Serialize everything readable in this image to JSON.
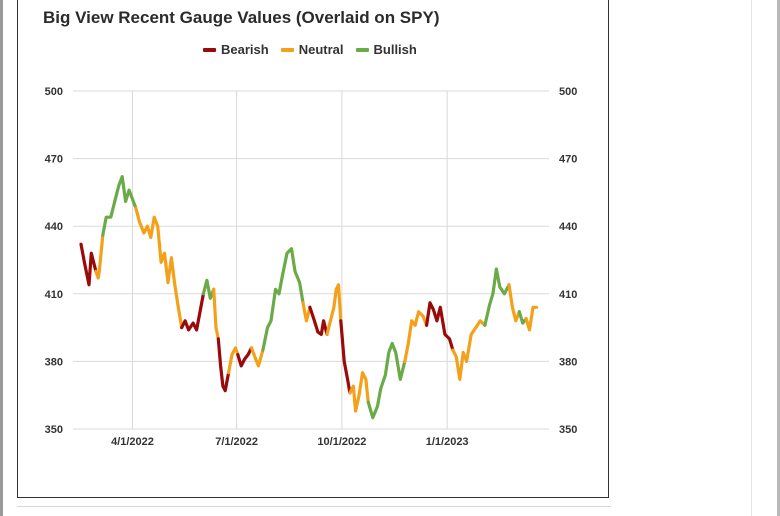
{
  "chart_data": {
    "type": "line",
    "title": "Big View Recent Gauge Values (Overlaid on SPY)",
    "legend": {
      "placement": "top",
      "entries": [
        {
          "name": "Bearish",
          "color": "#9b0a0a"
        },
        {
          "name": "Neutral",
          "color": "#f5a01a"
        },
        {
          "name": "Bullish",
          "color": "#6aab48"
        }
      ]
    },
    "ylim": [
      350,
      500
    ],
    "yticks": [
      350,
      380,
      410,
      440,
      470,
      500
    ],
    "xlim": [
      "2022-02-08",
      "2023-03-31"
    ],
    "xticks": [
      {
        "date": "2022-04-01",
        "label": "4/1/2022"
      },
      {
        "date": "2022-07-01",
        "label": "7/1/2022"
      },
      {
        "date": "2022-10-01",
        "label": "10/1/2022"
      },
      {
        "date": "2023-01-01",
        "label": "1/1/2023"
      }
    ],
    "grid": true,
    "segments": [
      {
        "series": "Bearish",
        "points": [
          [
            "2022-02-15",
            432
          ],
          [
            "2022-02-18",
            424
          ],
          [
            "2022-02-22",
            414
          ],
          [
            "2022-02-24",
            428
          ],
          [
            "2022-02-28",
            420
          ]
        ]
      },
      {
        "series": "Neutral",
        "points": [
          [
            "2022-02-28",
            420
          ],
          [
            "2022-03-02",
            417
          ],
          [
            "2022-03-03",
            420
          ],
          [
            "2022-03-06",
            436
          ]
        ]
      },
      {
        "series": "Bullish",
        "points": [
          [
            "2022-03-06",
            436
          ],
          [
            "2022-03-09",
            444
          ],
          [
            "2022-03-13",
            444
          ],
          [
            "2022-03-17",
            452
          ],
          [
            "2022-03-20",
            458
          ],
          [
            "2022-03-23",
            462
          ],
          [
            "2022-03-26",
            451
          ],
          [
            "2022-03-29",
            456
          ],
          [
            "2022-04-01",
            452
          ],
          [
            "2022-04-04",
            448
          ]
        ]
      },
      {
        "series": "Neutral",
        "points": [
          [
            "2022-04-04",
            448
          ],
          [
            "2022-04-07",
            442
          ],
          [
            "2022-04-11",
            437
          ],
          [
            "2022-04-14",
            440
          ],
          [
            "2022-04-17",
            435
          ],
          [
            "2022-04-20",
            444
          ],
          [
            "2022-04-23",
            440
          ],
          [
            "2022-04-26",
            424
          ],
          [
            "2022-04-29",
            428
          ],
          [
            "2022-05-02",
            415
          ],
          [
            "2022-05-05",
            426
          ],
          [
            "2022-05-08",
            414
          ],
          [
            "2022-05-11",
            404
          ],
          [
            "2022-05-14",
            395
          ]
        ]
      },
      {
        "series": "Bearish",
        "points": [
          [
            "2022-05-14",
            395
          ],
          [
            "2022-05-17",
            398
          ],
          [
            "2022-05-20",
            394
          ],
          [
            "2022-05-24",
            397
          ],
          [
            "2022-05-27",
            394
          ],
          [
            "2022-05-30",
            402
          ],
          [
            "2022-06-02",
            410
          ]
        ]
      },
      {
        "series": "Bullish",
        "points": [
          [
            "2022-06-02",
            410
          ],
          [
            "2022-06-05",
            416
          ],
          [
            "2022-06-08",
            408
          ],
          [
            "2022-06-11",
            412
          ]
        ]
      },
      {
        "series": "Neutral",
        "points": [
          [
            "2022-06-11",
            412
          ],
          [
            "2022-06-13",
            395
          ],
          [
            "2022-06-15",
            390
          ]
        ]
      },
      {
        "series": "Bearish",
        "points": [
          [
            "2022-06-15",
            390
          ],
          [
            "2022-06-17",
            378
          ],
          [
            "2022-06-19",
            369
          ],
          [
            "2022-06-21",
            367
          ],
          [
            "2022-06-24",
            375
          ]
        ]
      },
      {
        "series": "Neutral",
        "points": [
          [
            "2022-06-24",
            375
          ],
          [
            "2022-06-27",
            383
          ],
          [
            "2022-06-30",
            386
          ],
          [
            "2022-07-02",
            383
          ]
        ]
      },
      {
        "series": "Bearish",
        "points": [
          [
            "2022-07-02",
            383
          ],
          [
            "2022-07-05",
            378
          ],
          [
            "2022-07-08",
            381
          ],
          [
            "2022-07-11",
            383
          ],
          [
            "2022-07-14",
            386
          ]
        ]
      },
      {
        "series": "Neutral",
        "points": [
          [
            "2022-07-14",
            386
          ],
          [
            "2022-07-17",
            382
          ],
          [
            "2022-07-20",
            378
          ],
          [
            "2022-07-24",
            385
          ]
        ]
      },
      {
        "series": "Bullish",
        "points": [
          [
            "2022-07-24",
            385
          ],
          [
            "2022-07-28",
            395
          ],
          [
            "2022-07-31",
            398
          ],
          [
            "2022-08-04",
            412
          ],
          [
            "2022-08-07",
            410
          ],
          [
            "2022-08-10",
            418
          ],
          [
            "2022-08-14",
            428
          ],
          [
            "2022-08-18",
            430
          ],
          [
            "2022-08-21",
            420
          ],
          [
            "2022-08-25",
            415
          ],
          [
            "2022-08-28",
            406
          ]
        ]
      },
      {
        "series": "Neutral",
        "points": [
          [
            "2022-08-28",
            406
          ],
          [
            "2022-08-31",
            398
          ],
          [
            "2022-09-01",
            400
          ],
          [
            "2022-09-03",
            404
          ]
        ]
      },
      {
        "series": "Bearish",
        "points": [
          [
            "2022-09-03",
            404
          ],
          [
            "2022-09-07",
            398
          ],
          [
            "2022-09-10",
            393
          ],
          [
            "2022-09-13",
            392
          ],
          [
            "2022-09-15",
            398
          ],
          [
            "2022-09-18",
            392
          ]
        ]
      },
      {
        "series": "Neutral",
        "points": [
          [
            "2022-09-18",
            392
          ],
          [
            "2022-09-22",
            400
          ],
          [
            "2022-09-24",
            404
          ],
          [
            "2022-09-26",
            412
          ],
          [
            "2022-09-28",
            414
          ],
          [
            "2022-09-30",
            398
          ]
        ]
      },
      {
        "series": "Bearish",
        "points": [
          [
            "2022-09-30",
            398
          ],
          [
            "2022-10-03",
            380
          ],
          [
            "2022-10-06",
            372
          ],
          [
            "2022-10-08",
            366
          ]
        ]
      },
      {
        "series": "Neutral",
        "points": [
          [
            "2022-10-08",
            366
          ],
          [
            "2022-10-11",
            369
          ],
          [
            "2022-10-13",
            358
          ],
          [
            "2022-10-16",
            365
          ],
          [
            "2022-10-19",
            375
          ],
          [
            "2022-10-22",
            372
          ],
          [
            "2022-10-24",
            362
          ]
        ]
      },
      {
        "series": "Bullish",
        "points": [
          [
            "2022-10-24",
            362
          ],
          [
            "2022-10-28",
            355
          ],
          [
            "2022-11-01",
            360
          ],
          [
            "2022-11-04",
            368
          ],
          [
            "2022-11-08",
            374
          ],
          [
            "2022-11-11",
            384
          ],
          [
            "2022-11-14",
            388
          ],
          [
            "2022-11-17",
            384
          ],
          [
            "2022-11-21",
            372
          ],
          [
            "2022-11-25",
            380
          ]
        ]
      },
      {
        "series": "Neutral",
        "points": [
          [
            "2022-11-25",
            380
          ],
          [
            "2022-11-28",
            388
          ],
          [
            "2022-12-01",
            398
          ],
          [
            "2022-12-04",
            396
          ],
          [
            "2022-12-07",
            402
          ],
          [
            "2022-12-11",
            400
          ],
          [
            "2022-12-14",
            396
          ]
        ]
      },
      {
        "series": "Bearish",
        "points": [
          [
            "2022-12-14",
            396
          ],
          [
            "2022-12-17",
            406
          ],
          [
            "2022-12-20",
            403
          ],
          [
            "2022-12-23",
            398
          ],
          [
            "2022-12-26",
            404
          ],
          [
            "2022-12-30",
            392
          ],
          [
            "2023-01-03",
            390
          ],
          [
            "2023-01-06",
            385
          ]
        ]
      },
      {
        "series": "Neutral",
        "points": [
          [
            "2023-01-06",
            385
          ],
          [
            "2023-01-09",
            382
          ],
          [
            "2023-01-12",
            372
          ],
          [
            "2023-01-15",
            384
          ],
          [
            "2023-01-18",
            380
          ],
          [
            "2023-01-22",
            392
          ],
          [
            "2023-01-26",
            395
          ],
          [
            "2023-01-30",
            398
          ],
          [
            "2023-02-03",
            396
          ]
        ]
      },
      {
        "series": "Bullish",
        "points": [
          [
            "2023-02-03",
            396
          ],
          [
            "2023-02-07",
            405
          ],
          [
            "2023-02-10",
            410
          ],
          [
            "2023-02-13",
            421
          ],
          [
            "2023-02-16",
            413
          ],
          [
            "2023-02-20",
            410
          ],
          [
            "2023-02-24",
            414
          ]
        ]
      },
      {
        "series": "Neutral",
        "points": [
          [
            "2023-02-24",
            414
          ],
          [
            "2023-02-27",
            404
          ],
          [
            "2023-03-02",
            398
          ],
          [
            "2023-03-05",
            402
          ]
        ]
      },
      {
        "series": "Bullish",
        "points": [
          [
            "2023-03-05",
            402
          ],
          [
            "2023-03-08",
            397
          ],
          [
            "2023-03-11",
            399
          ]
        ]
      },
      {
        "series": "Neutral",
        "points": [
          [
            "2023-03-11",
            399
          ],
          [
            "2023-03-14",
            394
          ],
          [
            "2023-03-17",
            404
          ],
          [
            "2023-03-20",
            404
          ]
        ]
      }
    ]
  }
}
